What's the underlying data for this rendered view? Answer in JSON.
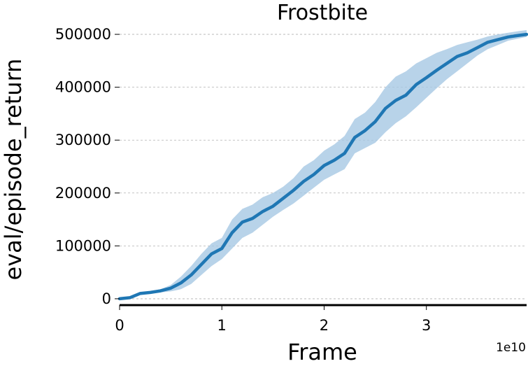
{
  "chart_data": {
    "type": "line",
    "title": "Frostbite",
    "xlabel": "Frame",
    "ylabel": "eval/episode_return",
    "x_offset_label": "1e10",
    "xlim": [
      0,
      3.98
    ],
    "ylim": [
      -12000,
      512000
    ],
    "x_ticks": [
      0,
      1,
      2,
      3
    ],
    "x_tick_labels": [
      "0",
      "1",
      "2",
      "3"
    ],
    "y_ticks": [
      0,
      100000,
      200000,
      300000,
      400000,
      500000
    ],
    "y_tick_labels": [
      "0",
      "100000",
      "200000",
      "300000",
      "400000",
      "500000"
    ],
    "grid": "y-dashed",
    "colors": {
      "line": "#1f77b4",
      "band": "#a6c8e3"
    },
    "series": [
      {
        "x": [
          0.0,
          0.1,
          0.2,
          0.3,
          0.4,
          0.5,
          0.6,
          0.7,
          0.8,
          0.9,
          1.0,
          1.1,
          1.2,
          1.3,
          1.4,
          1.5,
          1.6,
          1.7,
          1.8,
          1.9,
          2.0,
          2.1,
          2.2,
          2.3,
          2.4,
          2.5,
          2.6,
          2.7,
          2.8,
          2.9,
          3.0,
          3.1,
          3.2,
          3.3,
          3.4,
          3.5,
          3.6,
          3.7,
          3.8,
          3.9,
          3.98
        ],
        "y": [
          0,
          2000,
          10000,
          12000,
          15000,
          20000,
          30000,
          45000,
          65000,
          85000,
          95000,
          125000,
          145000,
          152000,
          165000,
          175000,
          190000,
          205000,
          222000,
          235000,
          252000,
          262000,
          275000,
          305000,
          318000,
          335000,
          360000,
          375000,
          385000,
          405000,
          418000,
          432000,
          445000,
          458000,
          465000,
          475000,
          485000,
          490000,
          495000,
          498000,
          500000
        ],
        "lower": [
          0,
          1000,
          8000,
          10000,
          12000,
          14000,
          18000,
          28000,
          45000,
          62000,
          75000,
          95000,
          115000,
          125000,
          140000,
          155000,
          168000,
          180000,
          195000,
          210000,
          225000,
          235000,
          245000,
          275000,
          285000,
          295000,
          315000,
          332000,
          345000,
          362000,
          380000,
          398000,
          415000,
          430000,
          445000,
          460000,
          472000,
          480000,
          488000,
          492000,
          495000
        ],
        "upper": [
          0,
          3000,
          12000,
          14000,
          18000,
          26000,
          42000,
          62000,
          85000,
          105000,
          115000,
          150000,
          170000,
          178000,
          192000,
          200000,
          212000,
          228000,
          250000,
          262000,
          280000,
          292000,
          308000,
          340000,
          352000,
          372000,
          400000,
          420000,
          430000,
          445000,
          455000,
          465000,
          472000,
          480000,
          485000,
          490000,
          496000,
          500000,
          503000,
          506000,
          508000
        ]
      }
    ]
  }
}
